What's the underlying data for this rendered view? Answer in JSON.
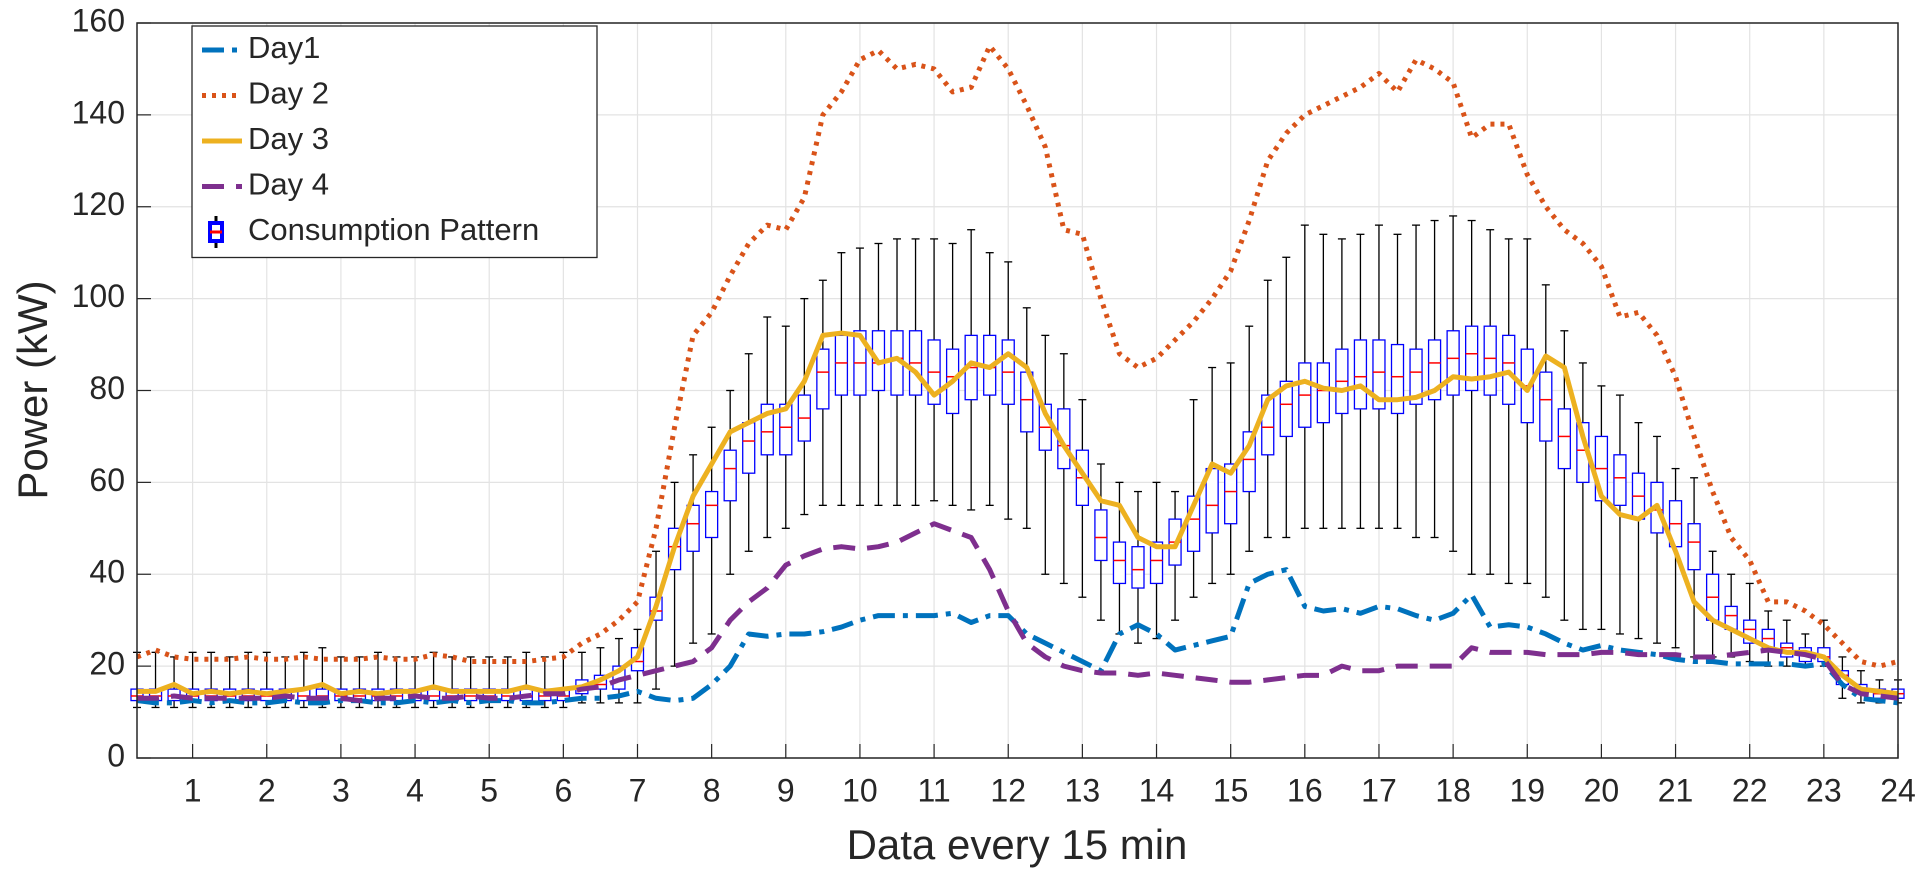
{
  "chart_data": {
    "type": "line",
    "x_label": "Data every 15 min",
    "y_label": "Power (kW)",
    "xlim": [
      0.25,
      24
    ],
    "ylim": [
      0,
      160
    ],
    "xticks": [
      1,
      2,
      3,
      4,
      5,
      6,
      7,
      8,
      9,
      10,
      11,
      12,
      13,
      14,
      15,
      16,
      17,
      18,
      19,
      20,
      21,
      22,
      23,
      24
    ],
    "yticks": [
      0,
      20,
      40,
      60,
      80,
      100,
      120,
      140,
      160
    ],
    "grid": true,
    "legend": "upper left",
    "x": [
      0.25,
      0.5,
      0.75,
      1,
      1.25,
      1.5,
      1.75,
      2,
      2.25,
      2.5,
      2.75,
      3,
      3.25,
      3.5,
      3.75,
      4,
      4.25,
      4.5,
      4.75,
      5,
      5.25,
      5.5,
      5.75,
      6,
      6.25,
      6.5,
      6.75,
      7,
      7.25,
      7.5,
      7.75,
      8,
      8.25,
      8.5,
      8.75,
      9,
      9.25,
      9.5,
      9.75,
      10,
      10.25,
      10.5,
      10.75,
      11,
      11.25,
      11.5,
      11.75,
      12,
      12.25,
      12.5,
      12.75,
      13,
      13.25,
      13.5,
      13.75,
      14,
      14.25,
      14.5,
      14.75,
      15,
      15.25,
      15.5,
      15.75,
      16,
      16.25,
      16.5,
      16.75,
      17,
      17.25,
      17.5,
      17.75,
      18,
      18.25,
      18.5,
      18.75,
      19,
      19.25,
      19.5,
      19.75,
      20,
      20.25,
      20.5,
      20.75,
      21,
      21.25,
      21.5,
      21.75,
      22,
      22.25,
      22.5,
      22.75,
      23,
      23.25,
      23.5,
      23.75,
      24
    ],
    "series": [
      {
        "name": "Day1",
        "type": "line",
        "style": "dashdot",
        "color": "#0072BD",
        "values": [
          12.5,
          12,
          12,
          12.5,
          12,
          12.5,
          12,
          12,
          12.5,
          12,
          12,
          12.5,
          12.5,
          12,
          12,
          12.5,
          12,
          12.5,
          12,
          12.5,
          12.5,
          12,
          12,
          12.5,
          13,
          13,
          13.5,
          14.5,
          13,
          12.5,
          13,
          16,
          20,
          27,
          26.5,
          27,
          27,
          27.5,
          28.5,
          30,
          31,
          31,
          31,
          31,
          31.5,
          29.5,
          31,
          31,
          27,
          25,
          23,
          21,
          19,
          27,
          29,
          27,
          23.5,
          24.5,
          25.5,
          26.5,
          38,
          40,
          41,
          33,
          32,
          32.5,
          31.5,
          33,
          32.5,
          31,
          30,
          31.5,
          35.5,
          28.5,
          29,
          28.5,
          27,
          25,
          23.5,
          24.5,
          23.5,
          23,
          22.5,
          21.5,
          21,
          21,
          20.5,
          20.5,
          20.5,
          20.5,
          20,
          20.5,
          16,
          13,
          12.5,
          12
        ]
      },
      {
        "name": "Day 2",
        "type": "line",
        "style": "dotted",
        "color": "#D95319",
        "values": [
          22,
          23.5,
          22,
          21.5,
          21.5,
          21.5,
          22,
          21.5,
          21.5,
          22,
          21.5,
          21.5,
          21.5,
          22,
          21.5,
          21.5,
          22.5,
          22,
          21,
          21,
          21,
          21,
          21.5,
          22,
          25,
          27,
          30,
          34,
          50,
          72,
          92,
          97,
          105,
          112,
          116,
          115,
          122,
          140,
          145,
          152,
          154,
          150,
          151,
          150,
          145,
          146,
          155,
          150,
          142,
          133,
          115,
          114,
          100,
          88,
          85,
          87,
          91,
          95,
          100,
          106,
          117,
          130,
          136,
          140,
          142,
          144,
          146,
          149,
          145,
          152,
          150,
          147,
          135,
          138,
          138,
          127,
          120,
          115,
          112,
          107,
          96,
          97,
          92,
          83,
          70,
          58,
          48,
          43,
          34,
          34,
          32,
          29,
          25,
          21,
          20,
          21
        ]
      },
      {
        "name": "Day 3",
        "type": "line",
        "style": "solid",
        "color": "#EDB120",
        "values": [
          14.5,
          14.5,
          16,
          14,
          14.5,
          14,
          14.5,
          14,
          14.5,
          15,
          16,
          14,
          14.5,
          14,
          14.5,
          14.5,
          15.5,
          14.5,
          14.5,
          14.5,
          14.5,
          15.5,
          14.5,
          15,
          15.5,
          17,
          19,
          22,
          33,
          46,
          57,
          64,
          71,
          73,
          75,
          76,
          82,
          92,
          92.5,
          92,
          86,
          87,
          84,
          79,
          82,
          86,
          85,
          88,
          85,
          75,
          68,
          62,
          56,
          55,
          48,
          46,
          46,
          55,
          64,
          62,
          68,
          78,
          81,
          82,
          80.5,
          80,
          81,
          78,
          78,
          78.5,
          80,
          83,
          82.5,
          83,
          84,
          80,
          87.5,
          85,
          70,
          57,
          53,
          52,
          55,
          45,
          34,
          30,
          28,
          26,
          24,
          23,
          23,
          22,
          18,
          15,
          14.5,
          14
        ]
      },
      {
        "name": "Day 4",
        "type": "line",
        "style": "dashed",
        "color": "#7E2F8E",
        "values": [
          13,
          13,
          13.5,
          13,
          13,
          13,
          13,
          13,
          13.5,
          13,
          13,
          13,
          12.5,
          13,
          13,
          13.5,
          13,
          13,
          13.5,
          13,
          13,
          13.5,
          14,
          14,
          15,
          15.5,
          17,
          18,
          19,
          20,
          21,
          24,
          30,
          34,
          37,
          42,
          44,
          45.5,
          46,
          45.5,
          46,
          47,
          49,
          51,
          49.5,
          48,
          41,
          32,
          25,
          22,
          20,
          19,
          18.5,
          18.5,
          18,
          18.5,
          18,
          17.5,
          17,
          16.5,
          16.5,
          17,
          17.5,
          18,
          18,
          20,
          19,
          19,
          20,
          20,
          20,
          20,
          24,
          23,
          23,
          23,
          22.5,
          22.5,
          22.5,
          23,
          23,
          22.5,
          22.5,
          22.5,
          22,
          22,
          22.5,
          23,
          23.5,
          23,
          22.5,
          21.5,
          16,
          14,
          13.5,
          13
        ]
      },
      {
        "name": "Consumption Pattern",
        "type": "box",
        "color": "#0000FF",
        "median_color": "#FF0000",
        "low": [
          11,
          11,
          11,
          11,
          11,
          11,
          11,
          11,
          11,
          11,
          11,
          11,
          11,
          11,
          11,
          11,
          11,
          11,
          11,
          11,
          11,
          11,
          11,
          11,
          12,
          12,
          12,
          12,
          15,
          20,
          25,
          27,
          40,
          45,
          48,
          50,
          53,
          55,
          55,
          55,
          55,
          55,
          55,
          56,
          55,
          54,
          55,
          52,
          50,
          40,
          38,
          35,
          30,
          27,
          25,
          26,
          30,
          35,
          38,
          40,
          45,
          48,
          48,
          50,
          50,
          50,
          50,
          50,
          50,
          48,
          48,
          45,
          40,
          40,
          38,
          38,
          35,
          30,
          28,
          28,
          27,
          26,
          25,
          24,
          22,
          22,
          22,
          21,
          20,
          20,
          20,
          20,
          13,
          12,
          12,
          12
        ],
        "q1": [
          12.5,
          12.5,
          12.5,
          12.5,
          12.5,
          12.5,
          12.5,
          12.5,
          12.5,
          12.5,
          12.5,
          12.5,
          12.5,
          12.5,
          12.5,
          12.5,
          12.5,
          12.5,
          12.5,
          12.5,
          12.5,
          12.5,
          12.5,
          12.5,
          14,
          15,
          15,
          19,
          30,
          41,
          45,
          48,
          56,
          62,
          66,
          66,
          69,
          76,
          79,
          79,
          80,
          79,
          79,
          77,
          75,
          78,
          79,
          77,
          71,
          67,
          63,
          55,
          43,
          38,
          37,
          38,
          42,
          45,
          49,
          51,
          58,
          66,
          70,
          72,
          73,
          75,
          76,
          76,
          75,
          77,
          78,
          79,
          80,
          79,
          77,
          73,
          69,
          63,
          60,
          56,
          55,
          52,
          49,
          46,
          41,
          30,
          28,
          25,
          24,
          22,
          21,
          21,
          16,
          14,
          13,
          13
        ],
        "median": [
          13.5,
          13.5,
          13.5,
          13.5,
          13.5,
          13.5,
          13.5,
          13.5,
          13.5,
          13.5,
          13.5,
          13.5,
          13.5,
          13.5,
          13.5,
          13.5,
          13.5,
          13.5,
          13.5,
          13.5,
          13.5,
          13.5,
          13.5,
          13.5,
          15,
          16,
          17,
          21,
          32,
          46,
          51,
          55,
          63,
          69,
          71,
          72,
          74,
          84,
          86,
          86,
          86,
          87,
          86,
          84,
          83,
          85,
          85,
          84,
          78,
          72,
          68,
          61,
          48,
          43,
          41,
          43,
          47,
          52,
          55,
          58,
          65,
          72,
          77,
          79,
          80,
          82,
          83,
          84,
          83,
          84,
          86,
          87,
          88,
          87,
          86,
          81,
          78,
          70,
          67,
          63,
          61,
          57,
          54,
          51,
          47,
          35,
          31,
          28,
          26,
          24,
          23,
          22,
          18,
          15,
          14,
          14
        ],
        "q3": [
          15,
          15,
          15,
          15,
          15,
          15,
          15,
          15,
          15,
          15,
          15,
          15,
          15,
          15,
          15,
          15,
          15,
          15,
          15,
          15,
          15,
          15,
          15,
          15,
          17,
          18,
          20,
          24,
          35,
          50,
          55,
          58,
          67,
          73,
          77,
          77,
          79,
          89,
          92,
          93,
          93,
          93,
          93,
          91,
          89,
          92,
          92,
          91,
          84,
          77,
          76,
          67,
          54,
          47,
          46,
          47,
          52,
          57,
          63,
          64,
          71,
          79,
          82,
          86,
          86,
          89,
          91,
          91,
          90,
          89,
          91,
          93,
          94,
          94,
          92,
          89,
          84,
          76,
          73,
          70,
          66,
          62,
          60,
          56,
          51,
          40,
          33,
          30,
          28,
          25,
          24,
          24,
          19,
          16,
          15,
          15
        ],
        "high": [
          23,
          23,
          22,
          23,
          23,
          22,
          23,
          23,
          22,
          23,
          24,
          22,
          22,
          23,
          22,
          22,
          23,
          22,
          22,
          22,
          22,
          23,
          22,
          23,
          23,
          24,
          26,
          28,
          45,
          60,
          66,
          72,
          80,
          88,
          96,
          94,
          100,
          104,
          110,
          111,
          112,
          113,
          113,
          113,
          112,
          115,
          110,
          108,
          98,
          92,
          88,
          78,
          64,
          60,
          58,
          60,
          58,
          78,
          85,
          86,
          94,
          104,
          109,
          116,
          114,
          113,
          114,
          116,
          114,
          116,
          117,
          118,
          117,
          115,
          113,
          113,
          103,
          93,
          86,
          81,
          79,
          73,
          70,
          63,
          61,
          45,
          40,
          38,
          32,
          30,
          27,
          30,
          22,
          19,
          17,
          17
        ]
      }
    ]
  }
}
